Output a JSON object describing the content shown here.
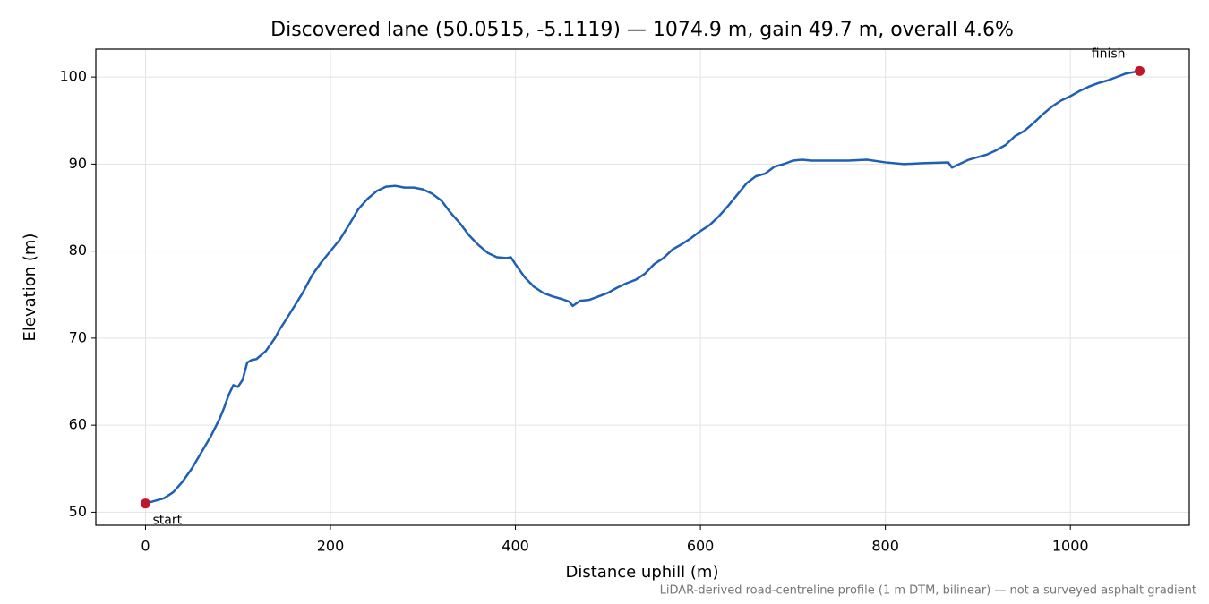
{
  "chart_data": {
    "type": "line",
    "title": "Discovered lane (50.0515, -5.1119) — 1074.9 m, gain 49.7 m, overall 4.6%",
    "x_label": "Distance uphill (m)",
    "y_label": "Elevation (m)",
    "footnote": "LiDAR-derived road-centreline profile (1 m DTM, bilinear) — not a surveyed asphalt gradient",
    "color": "#1f5fb4",
    "x": [
      0,
      20,
      30,
      40,
      50,
      60,
      70,
      80,
      85,
      90,
      95,
      100,
      105,
      110,
      115,
      120,
      130,
      140,
      145,
      150,
      160,
      170,
      180,
      190,
      200,
      210,
      220,
      230,
      240,
      250,
      260,
      270,
      280,
      290,
      300,
      310,
      320,
      330,
      340,
      350,
      360,
      370,
      380,
      390,
      395,
      400,
      410,
      420,
      430,
      440,
      450,
      458,
      462,
      470,
      480,
      490,
      500,
      510,
      520,
      530,
      540,
      550,
      560,
      570,
      580,
      590,
      600,
      610,
      620,
      630,
      640,
      650,
      660,
      670,
      680,
      690,
      700,
      710,
      720,
      740,
      760,
      780,
      800,
      820,
      840,
      868,
      872,
      880,
      890,
      900,
      910,
      920,
      930,
      940,
      950,
      960,
      970,
      980,
      990,
      1000,
      1010,
      1020,
      1030,
      1040,
      1050,
      1060,
      1074.9
    ],
    "values": [
      51.0,
      51.6,
      52.3,
      53.5,
      55.0,
      56.8,
      58.6,
      60.7,
      62.0,
      63.5,
      64.6,
      64.4,
      65.2,
      67.2,
      67.5,
      67.6,
      68.5,
      70.0,
      71.0,
      71.8,
      73.5,
      75.2,
      77.2,
      78.7,
      80.0,
      81.3,
      83.0,
      84.8,
      86.0,
      86.9,
      87.4,
      87.5,
      87.3,
      87.3,
      87.1,
      86.6,
      85.8,
      84.4,
      83.2,
      81.8,
      80.7,
      79.8,
      79.3,
      79.2,
      79.3,
      78.5,
      77.0,
      75.9,
      75.2,
      74.8,
      74.5,
      74.2,
      73.7,
      74.3,
      74.4,
      74.8,
      75.2,
      75.8,
      76.3,
      76.7,
      77.4,
      78.5,
      79.2,
      80.2,
      80.8,
      81.5,
      82.3,
      83.0,
      84.0,
      85.2,
      86.5,
      87.8,
      88.6,
      88.9,
      89.7,
      90.0,
      90.4,
      90.5,
      90.4,
      90.4,
      90.4,
      90.5,
      90.2,
      90.0,
      90.1,
      90.2,
      89.6,
      90.0,
      90.5,
      90.8,
      91.1,
      91.6,
      92.2,
      93.2,
      93.8,
      94.7,
      95.7,
      96.6,
      97.3,
      97.8,
      98.4,
      98.9,
      99.3,
      99.6,
      100.0,
      100.4,
      100.7
    ],
    "markers": {
      "x": [
        0,
        1074.9
      ],
      "values": [
        51.0,
        100.7
      ],
      "labels": [
        "start",
        "finish"
      ],
      "color": "#c0182a"
    },
    "xlim": [
      -53.7,
      1128.6
    ],
    "ylim": [
      48.5,
      103.2
    ],
    "xticks": [
      0,
      200,
      400,
      600,
      800,
      1000
    ],
    "yticks": [
      50,
      60,
      70,
      80,
      90,
      100
    ],
    "grid": true
  }
}
